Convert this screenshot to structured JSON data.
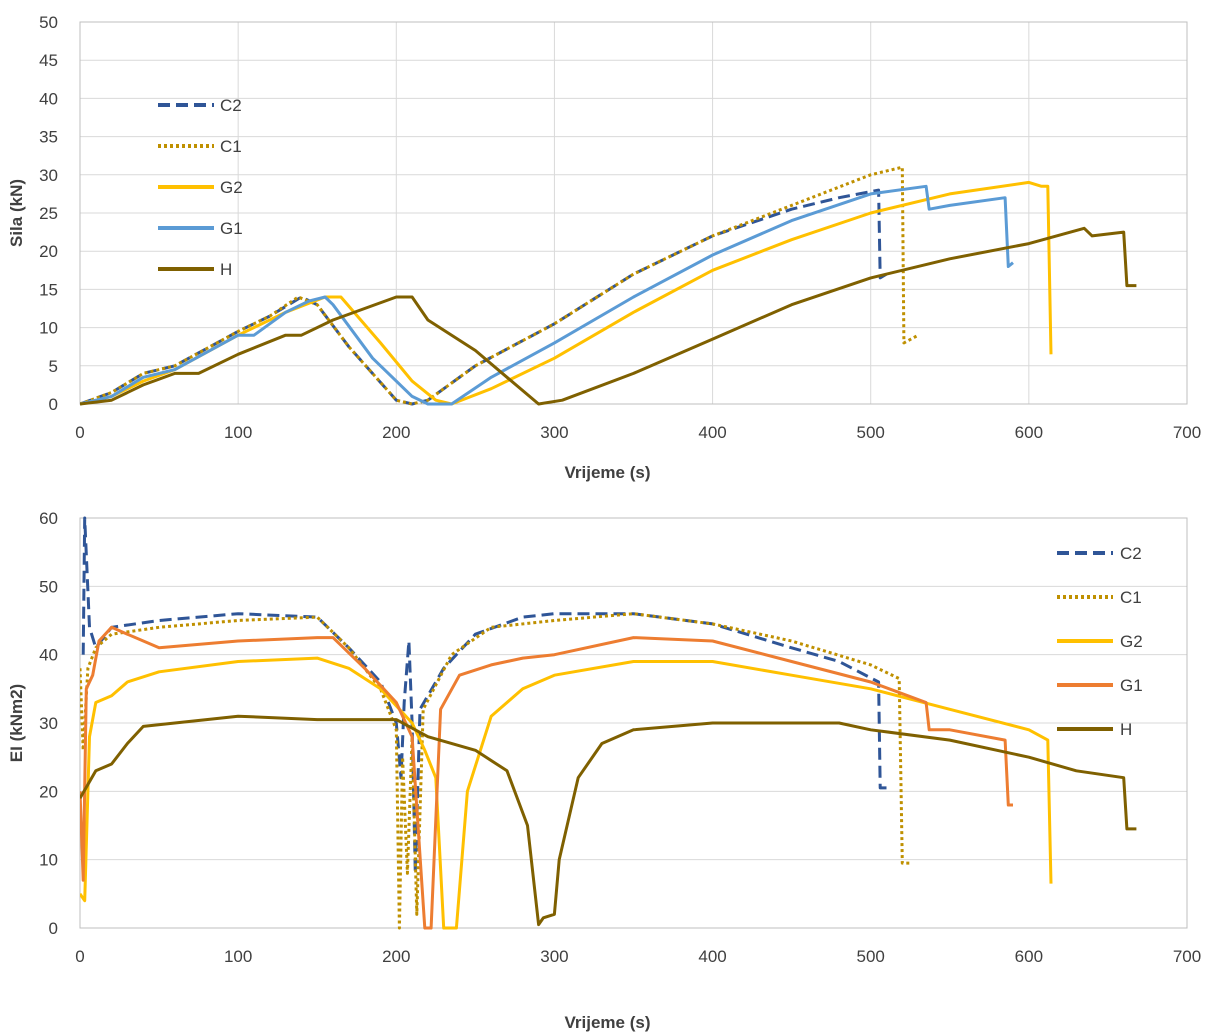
{
  "chart_data": [
    {
      "type": "line",
      "xlabel": "Vrijeme (s)",
      "ylabel": "Sila (kN)",
      "xlim": [
        0,
        700
      ],
      "ylim": [
        0,
        50
      ],
      "xticks": [
        "0",
        "100",
        "200",
        "300",
        "400",
        "500",
        "600",
        "700"
      ],
      "yticks": [
        "0",
        "5",
        "10",
        "15",
        "20",
        "25",
        "30",
        "35",
        "40",
        "45",
        "50"
      ],
      "grid": "both",
      "legend_placement": "left",
      "series": [
        {
          "name": "C2",
          "color": "#2f5597",
          "dash": "dashed",
          "points": [
            [
              0,
              0
            ],
            [
              20,
              1.5
            ],
            [
              40,
              4
            ],
            [
              60,
              5
            ],
            [
              100,
              9.5
            ],
            [
              120,
              11.5
            ],
            [
              140,
              14
            ],
            [
              150,
              13
            ],
            [
              170,
              7.5
            ],
            [
              200,
              0.5
            ],
            [
              210,
              0
            ],
            [
              220,
              0.5
            ],
            [
              250,
              5
            ],
            [
              300,
              10.5
            ],
            [
              350,
              17
            ],
            [
              400,
              22
            ],
            [
              450,
              25.5
            ],
            [
              480,
              27
            ],
            [
              505,
              28
            ],
            [
              506,
              16.5
            ],
            [
              510,
              17
            ]
          ]
        },
        {
          "name": "C1",
          "color": "#bf9000",
          "dash": "dotted",
          "points": [
            [
              0,
              0
            ],
            [
              20,
              1.5
            ],
            [
              40,
              4
            ],
            [
              60,
              5
            ],
            [
              100,
              9.5
            ],
            [
              120,
              11.5
            ],
            [
              138,
              14
            ],
            [
              150,
              13
            ],
            [
              170,
              7.5
            ],
            [
              200,
              0.5
            ],
            [
              210,
              0
            ],
            [
              220,
              0.5
            ],
            [
              250,
              5
            ],
            [
              300,
              10.5
            ],
            [
              350,
              17
            ],
            [
              400,
              22
            ],
            [
              450,
              26
            ],
            [
              500,
              30
            ],
            [
              520,
              31
            ],
            [
              521,
              8
            ],
            [
              530,
              9
            ]
          ]
        },
        {
          "name": "G2",
          "color": "#ffc000",
          "dash": "solid",
          "points": [
            [
              0,
              0
            ],
            [
              20,
              1
            ],
            [
              40,
              3
            ],
            [
              60,
              4.5
            ],
            [
              100,
              9
            ],
            [
              130,
              12
            ],
            [
              155,
              14
            ],
            [
              165,
              14
            ],
            [
              190,
              8
            ],
            [
              210,
              3
            ],
            [
              225,
              0.5
            ],
            [
              235,
              0
            ],
            [
              260,
              2
            ],
            [
              300,
              6
            ],
            [
              350,
              12
            ],
            [
              400,
              17.5
            ],
            [
              450,
              21.5
            ],
            [
              500,
              25
            ],
            [
              550,
              27.5
            ],
            [
              600,
              29
            ],
            [
              608,
              28.5
            ],
            [
              612,
              28.5
            ],
            [
              614,
              6.5
            ]
          ]
        },
        {
          "name": "G1",
          "color": "#5b9bd5",
          "dash": "solid",
          "points": [
            [
              0,
              0
            ],
            [
              20,
              1
            ],
            [
              40,
              3.5
            ],
            [
              60,
              4.5
            ],
            [
              100,
              9
            ],
            [
              110,
              9
            ],
            [
              130,
              12
            ],
            [
              145,
              13.5
            ],
            [
              155,
              14
            ],
            [
              160,
              13
            ],
            [
              185,
              6
            ],
            [
              210,
              1
            ],
            [
              220,
              0
            ],
            [
              235,
              0
            ],
            [
              260,
              3.5
            ],
            [
              300,
              8
            ],
            [
              350,
              14
            ],
            [
              400,
              19.5
            ],
            [
              450,
              24
            ],
            [
              500,
              27.5
            ],
            [
              535,
              28.5
            ],
            [
              537,
              25.5
            ],
            [
              550,
              26
            ],
            [
              585,
              27
            ],
            [
              587,
              18
            ],
            [
              590,
              18.5
            ]
          ]
        },
        {
          "name": "H",
          "color": "#7f6000",
          "dash": "solid",
          "points": [
            [
              0,
              0
            ],
            [
              20,
              0.5
            ],
            [
              40,
              2.5
            ],
            [
              60,
              4
            ],
            [
              75,
              4
            ],
            [
              100,
              6.5
            ],
            [
              130,
              9
            ],
            [
              140,
              9
            ],
            [
              160,
              11
            ],
            [
              200,
              14
            ],
            [
              210,
              14
            ],
            [
              220,
              11
            ],
            [
              250,
              7
            ],
            [
              270,
              3.5
            ],
            [
              290,
              0
            ],
            [
              305,
              0.5
            ],
            [
              350,
              4
            ],
            [
              400,
              8.5
            ],
            [
              450,
              13
            ],
            [
              500,
              16.5
            ],
            [
              550,
              19
            ],
            [
              600,
              21
            ],
            [
              635,
              23
            ],
            [
              640,
              22
            ],
            [
              660,
              22.5
            ],
            [
              662,
              15.5
            ],
            [
              668,
              15.5
            ]
          ]
        }
      ]
    },
    {
      "type": "line",
      "xlabel": "Vrijeme (s)",
      "ylabel": "EI (kNm2)",
      "xlim": [
        0,
        700
      ],
      "ylim": [
        0,
        60
      ],
      "xticks": [
        "0",
        "100",
        "200",
        "300",
        "400",
        "500",
        "600",
        "700"
      ],
      "yticks": [
        "0",
        "10",
        "20",
        "30",
        "40",
        "50",
        "60"
      ],
      "grid": "horizontal",
      "legend_placement": "right",
      "series": [
        {
          "name": "C2",
          "color": "#2f5597",
          "dash": "dashed",
          "points": [
            [
              2,
              40
            ],
            [
              3,
              60
            ],
            [
              6,
              44
            ],
            [
              10,
              41
            ],
            [
              20,
              44
            ],
            [
              50,
              45
            ],
            [
              100,
              46
            ],
            [
              150,
              45.5
            ],
            [
              170,
              41
            ],
            [
              190,
              36
            ],
            [
              200,
              30
            ],
            [
              203,
              22
            ],
            [
              205,
              33
            ],
            [
              208,
              42
            ],
            [
              210,
              30
            ],
            [
              212,
              8
            ],
            [
              215,
              32
            ],
            [
              230,
              38
            ],
            [
              250,
              43
            ],
            [
              280,
              45.5
            ],
            [
              300,
              46
            ],
            [
              350,
              46
            ],
            [
              400,
              44.5
            ],
            [
              450,
              41
            ],
            [
              480,
              39
            ],
            [
              505,
              36
            ],
            [
              506,
              20.5
            ],
            [
              510,
              20.5
            ]
          ]
        },
        {
          "name": "C1",
          "color": "#bf9000",
          "dash": "dotted",
          "points": [
            [
              0,
              38
            ],
            [
              2,
              26
            ],
            [
              5,
              38
            ],
            [
              10,
              41
            ],
            [
              20,
              43
            ],
            [
              50,
              44
            ],
            [
              100,
              45
            ],
            [
              150,
              45.5
            ],
            [
              170,
              41
            ],
            [
              190,
              35
            ],
            [
              200,
              29
            ],
            [
              202,
              0
            ],
            [
              204,
              25
            ],
            [
              207,
              8
            ],
            [
              210,
              28
            ],
            [
              213,
              2
            ],
            [
              217,
              32
            ],
            [
              235,
              40
            ],
            [
              260,
              44
            ],
            [
              300,
              45
            ],
            [
              350,
              46
            ],
            [
              400,
              44.5
            ],
            [
              450,
              42
            ],
            [
              500,
              38.5
            ],
            [
              518,
              36.5
            ],
            [
              520,
              9.5
            ],
            [
              526,
              9.5
            ]
          ]
        },
        {
          "name": "G2",
          "color": "#ffc000",
          "dash": "solid",
          "points": [
            [
              0,
              5
            ],
            [
              3,
              4
            ],
            [
              6,
              28
            ],
            [
              10,
              33
            ],
            [
              20,
              34
            ],
            [
              30,
              36
            ],
            [
              50,
              37.5
            ],
            [
              100,
              39
            ],
            [
              150,
              39.5
            ],
            [
              170,
              38
            ],
            [
              190,
              35
            ],
            [
              210,
              30
            ],
            [
              218,
              26
            ],
            [
              225,
              22
            ],
            [
              230,
              0
            ],
            [
              238,
              0
            ],
            [
              245,
              20
            ],
            [
              260,
              31
            ],
            [
              280,
              35
            ],
            [
              300,
              37
            ],
            [
              350,
              39
            ],
            [
              400,
              39
            ],
            [
              450,
              37
            ],
            [
              500,
              35
            ],
            [
              550,
              32
            ],
            [
              600,
              29
            ],
            [
              612,
              27.5
            ],
            [
              614,
              6.5
            ]
          ]
        },
        {
          "name": "G1",
          "color": "#ed7d31",
          "dash": "solid",
          "points": [
            [
              0,
              20
            ],
            [
              2,
              7
            ],
            [
              4,
              35
            ],
            [
              8,
              37
            ],
            [
              12,
              42
            ],
            [
              20,
              44
            ],
            [
              30,
              43
            ],
            [
              50,
              41
            ],
            [
              100,
              42
            ],
            [
              150,
              42.5
            ],
            [
              160,
              42.5
            ],
            [
              180,
              38
            ],
            [
              200,
              33
            ],
            [
              210,
              28
            ],
            [
              218,
              0
            ],
            [
              222,
              0
            ],
            [
              228,
              32
            ],
            [
              240,
              37
            ],
            [
              260,
              38.5
            ],
            [
              280,
              39.5
            ],
            [
              300,
              40
            ],
            [
              350,
              42.5
            ],
            [
              400,
              42
            ],
            [
              450,
              39
            ],
            [
              500,
              36
            ],
            [
              535,
              33
            ],
            [
              537,
              29
            ],
            [
              550,
              29
            ],
            [
              585,
              27.5
            ],
            [
              587,
              18
            ],
            [
              590,
              18
            ]
          ]
        },
        {
          "name": "H",
          "color": "#7f6000",
          "dash": "solid",
          "points": [
            [
              0,
              19
            ],
            [
              5,
              21
            ],
            [
              10,
              23
            ],
            [
              20,
              24
            ],
            [
              30,
              27
            ],
            [
              40,
              29.5
            ],
            [
              60,
              30
            ],
            [
              100,
              31
            ],
            [
              150,
              30.5
            ],
            [
              200,
              30.5
            ],
            [
              220,
              28
            ],
            [
              250,
              26
            ],
            [
              270,
              23
            ],
            [
              283,
              15
            ],
            [
              290,
              0.5
            ],
            [
              293,
              1.5
            ],
            [
              300,
              2
            ],
            [
              303,
              10
            ],
            [
              315,
              22
            ],
            [
              330,
              27
            ],
            [
              350,
              29
            ],
            [
              400,
              30
            ],
            [
              450,
              30
            ],
            [
              480,
              30
            ],
            [
              500,
              29
            ],
            [
              550,
              27.5
            ],
            [
              600,
              25
            ],
            [
              630,
              23
            ],
            [
              660,
              22
            ],
            [
              662,
              14.5
            ],
            [
              668,
              14.5
            ]
          ]
        }
      ]
    }
  ]
}
